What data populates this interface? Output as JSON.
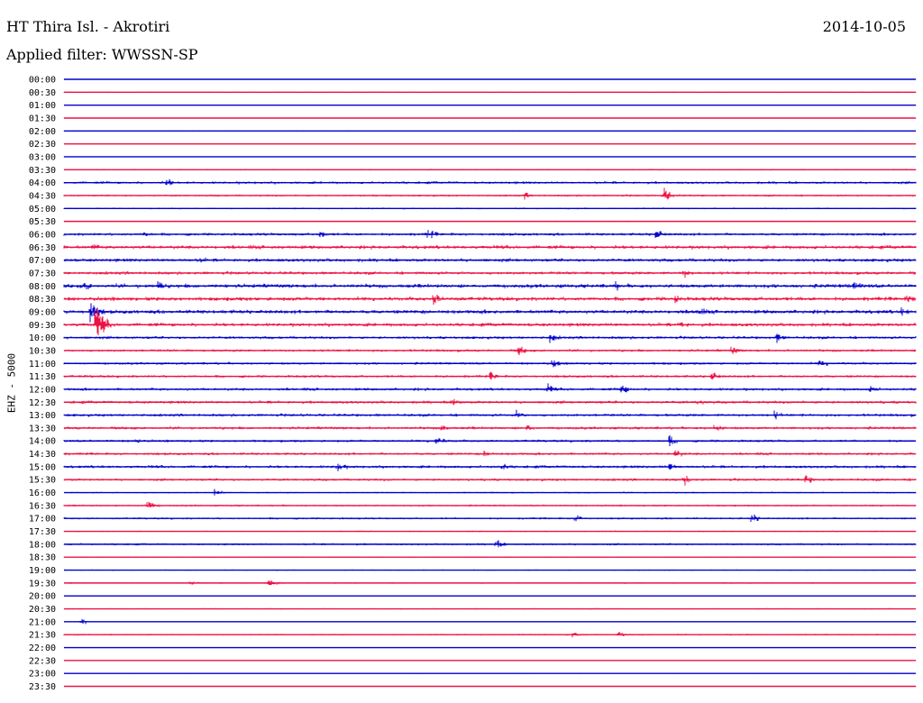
{
  "header": {
    "station": "HT Thira Isl. - Akrotiri",
    "date": "2014-10-05",
    "filter": "Applied filter: WWSSN-SP"
  },
  "channel_label": "EHZ - 5000",
  "colors": {
    "even_rows": "#0000cc",
    "odd_rows": "#ee1144",
    "background": "#ffffff"
  },
  "chart_data": {
    "type": "line",
    "title": "HT Thira Isl. - Akrotiri",
    "subtitle": "Applied filter: WWSSN-SP",
    "ylabel": "EHZ - 5000",
    "xlabel": "",
    "grid": false,
    "legend": "none",
    "row_labels": [
      "00:00",
      "00:30",
      "01:00",
      "01:30",
      "02:00",
      "02:30",
      "03:00",
      "03:30",
      "04:00",
      "04:30",
      "05:00",
      "05:30",
      "06:00",
      "06:30",
      "07:00",
      "07:30",
      "08:00",
      "08:30",
      "09:00",
      "09:30",
      "10:00",
      "10:30",
      "11:00",
      "11:30",
      "12:00",
      "12:30",
      "13:00",
      "13:30",
      "14:00",
      "14:30",
      "15:00",
      "15:30",
      "16:00",
      "16:30",
      "17:00",
      "17:30",
      "18:00",
      "18:30",
      "19:00",
      "19:30",
      "20:00",
      "20:30",
      "21:00",
      "21:30",
      "22:00",
      "22:30",
      "23:00",
      "23:30"
    ],
    "row_x_range_minutes": [
      0,
      30
    ],
    "noise_levels": [
      0.3,
      0.8,
      0.4,
      0.5,
      0.6,
      0.4,
      0.3,
      1.0,
      2.0,
      1.5,
      1.2,
      0.8,
      2.2,
      2.8,
      2.6,
      2.4,
      3.0,
      3.0,
      3.0,
      2.8,
      2.2,
      2.0,
      2.0,
      2.0,
      2.2,
      2.3,
      2.2,
      2.2,
      2.0,
      2.0,
      2.2,
      2.0,
      1.2,
      1.4,
      1.6,
      1.0,
      1.6,
      0.8,
      0.9,
      1.0,
      0.4,
      0.9,
      0.6,
      1.2,
      0.3,
      0.5,
      0.6,
      0.5
    ],
    "events": [
      {
        "row": "04:00",
        "minute": 3.6,
        "amplitude": 8
      },
      {
        "row": "04:30",
        "minute": 16.2,
        "amplitude": 6
      },
      {
        "row": "04:30",
        "minute": 21.1,
        "amplitude": 13
      },
      {
        "row": "06:00",
        "minute": 2.8,
        "amplitude": 7
      },
      {
        "row": "06:00",
        "minute": 9.0,
        "amplitude": 8
      },
      {
        "row": "06:00",
        "minute": 12.8,
        "amplitude": 10
      },
      {
        "row": "06:00",
        "minute": 20.8,
        "amplitude": 11
      },
      {
        "row": "06:30",
        "minute": 1.0,
        "amplitude": 7
      },
      {
        "row": "07:00",
        "minute": 4.8,
        "amplitude": 6
      },
      {
        "row": "07:30",
        "minute": 21.8,
        "amplitude": 9
      },
      {
        "row": "08:00",
        "minute": 0.7,
        "amplitude": 10
      },
      {
        "row": "08:00",
        "minute": 3.3,
        "amplitude": 9
      },
      {
        "row": "08:00",
        "minute": 19.4,
        "amplitude": 8
      },
      {
        "row": "08:00",
        "minute": 27.8,
        "amplitude": 10
      },
      {
        "row": "08:30",
        "minute": 13.0,
        "amplitude": 12
      },
      {
        "row": "08:30",
        "minute": 21.5,
        "amplitude": 9
      },
      {
        "row": "08:30",
        "minute": 29.7,
        "amplitude": 9
      },
      {
        "row": "09:00",
        "minute": 0.9,
        "amplitude": 22
      },
      {
        "row": "09:00",
        "minute": 22.3,
        "amplitude": 9
      },
      {
        "row": "09:00",
        "minute": 29.5,
        "amplitude": 9
      },
      {
        "row": "09:30",
        "minute": 1.1,
        "amplitude": 34
      },
      {
        "row": "09:30",
        "minute": 21.7,
        "amplitude": 9
      },
      {
        "row": "10:00",
        "minute": 17.1,
        "amplitude": 9
      },
      {
        "row": "10:00",
        "minute": 25.1,
        "amplitude": 9
      },
      {
        "row": "10:30",
        "minute": 16.0,
        "amplitude": 9
      },
      {
        "row": "10:30",
        "minute": 23.5,
        "amplitude": 8
      },
      {
        "row": "11:00",
        "minute": 17.2,
        "amplitude": 9
      },
      {
        "row": "11:00",
        "minute": 26.6,
        "amplitude": 8
      },
      {
        "row": "11:30",
        "minute": 15.0,
        "amplitude": 8
      },
      {
        "row": "11:30",
        "minute": 22.8,
        "amplitude": 9
      },
      {
        "row": "12:00",
        "minute": 17.0,
        "amplitude": 9
      },
      {
        "row": "12:00",
        "minute": 19.6,
        "amplitude": 10
      },
      {
        "row": "12:00",
        "minute": 28.4,
        "amplitude": 8
      },
      {
        "row": "12:30",
        "minute": 13.7,
        "amplitude": 9
      },
      {
        "row": "12:30",
        "minute": 22.3,
        "amplitude": 8
      },
      {
        "row": "13:00",
        "minute": 15.9,
        "amplitude": 9
      },
      {
        "row": "13:00",
        "minute": 25.0,
        "amplitude": 8
      },
      {
        "row": "13:30",
        "minute": 13.3,
        "amplitude": 9
      },
      {
        "row": "13:30",
        "minute": 16.3,
        "amplitude": 8
      },
      {
        "row": "13:30",
        "minute": 22.9,
        "amplitude": 9
      },
      {
        "row": "14:00",
        "minute": 2.5,
        "amplitude": 7
      },
      {
        "row": "14:00",
        "minute": 13.1,
        "amplitude": 9
      },
      {
        "row": "14:00",
        "minute": 21.3,
        "amplitude": 9
      },
      {
        "row": "14:30",
        "minute": 14.8,
        "amplitude": 8
      },
      {
        "row": "14:30",
        "minute": 21.5,
        "amplitude": 9
      },
      {
        "row": "15:00",
        "minute": 9.6,
        "amplitude": 10
      },
      {
        "row": "15:00",
        "minute": 15.4,
        "amplitude": 8
      },
      {
        "row": "15:00",
        "minute": 21.3,
        "amplitude": 8
      },
      {
        "row": "15:30",
        "minute": 21.8,
        "amplitude": 9
      },
      {
        "row": "15:30",
        "minute": 26.1,
        "amplitude": 9
      },
      {
        "row": "16:00",
        "minute": 5.3,
        "amplitude": 6
      },
      {
        "row": "16:30",
        "minute": 2.9,
        "amplitude": 10
      },
      {
        "row": "17:00",
        "minute": 18.0,
        "amplitude": 8
      },
      {
        "row": "17:00",
        "minute": 24.2,
        "amplitude": 9
      },
      {
        "row": "18:00",
        "minute": 15.2,
        "amplitude": 8
      },
      {
        "row": "19:30",
        "minute": 4.4,
        "amplitude": 6
      },
      {
        "row": "19:30",
        "minute": 7.2,
        "amplitude": 8
      },
      {
        "row": "21:00",
        "minute": 0.6,
        "amplitude": 5
      },
      {
        "row": "21:30",
        "minute": 17.9,
        "amplitude": 5
      },
      {
        "row": "21:30",
        "minute": 19.5,
        "amplitude": 5
      }
    ]
  }
}
